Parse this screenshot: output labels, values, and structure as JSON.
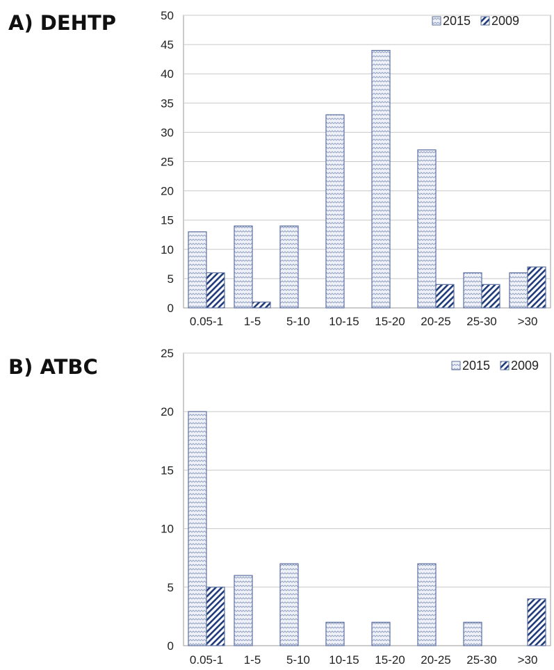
{
  "chart_data": [
    {
      "type": "bar",
      "title": "A) DEHTP",
      "categories": [
        "0.05-1",
        "1-5",
        "5-10",
        "10-15",
        "15-20",
        "20-25",
        "25-30",
        ">30"
      ],
      "series": [
        {
          "name": "2015",
          "values": [
            13,
            14,
            14,
            33,
            44,
            27,
            6,
            6
          ],
          "pattern": "zigzag"
        },
        {
          "name": "2009",
          "values": [
            6,
            1,
            0,
            0,
            0,
            4,
            4,
            7
          ],
          "pattern": "diagonal"
        }
      ],
      "ylim": [
        0,
        50
      ],
      "yticks": [
        0,
        5,
        10,
        15,
        20,
        25,
        30,
        35,
        40,
        45,
        50
      ],
      "grid": true,
      "legend": "top-right"
    },
    {
      "type": "bar",
      "title": "B) ATBC",
      "categories": [
        "0.05-1",
        "1-5",
        "5-10",
        "10-15",
        "15-20",
        "20-25",
        "25-30",
        ">30"
      ],
      "series": [
        {
          "name": "2015",
          "values": [
            20,
            6,
            7,
            2,
            2,
            7,
            2,
            0
          ],
          "pattern": "zigzag"
        },
        {
          "name": "2009",
          "values": [
            5,
            0,
            0,
            0,
            0,
            0,
            0,
            4
          ],
          "pattern": "diagonal"
        }
      ],
      "ylim": [
        0,
        25
      ],
      "yticks": [
        0,
        5,
        10,
        15,
        20,
        25
      ],
      "grid": true,
      "legend": "top-right"
    }
  ],
  "colors": {
    "bar_outline": "#5a6f9e",
    "series_2009_hatch": "#1e3a78",
    "series_2015_fill": "#e8ecf5",
    "grid": "#c8c8c8",
    "axis": "#999999"
  }
}
